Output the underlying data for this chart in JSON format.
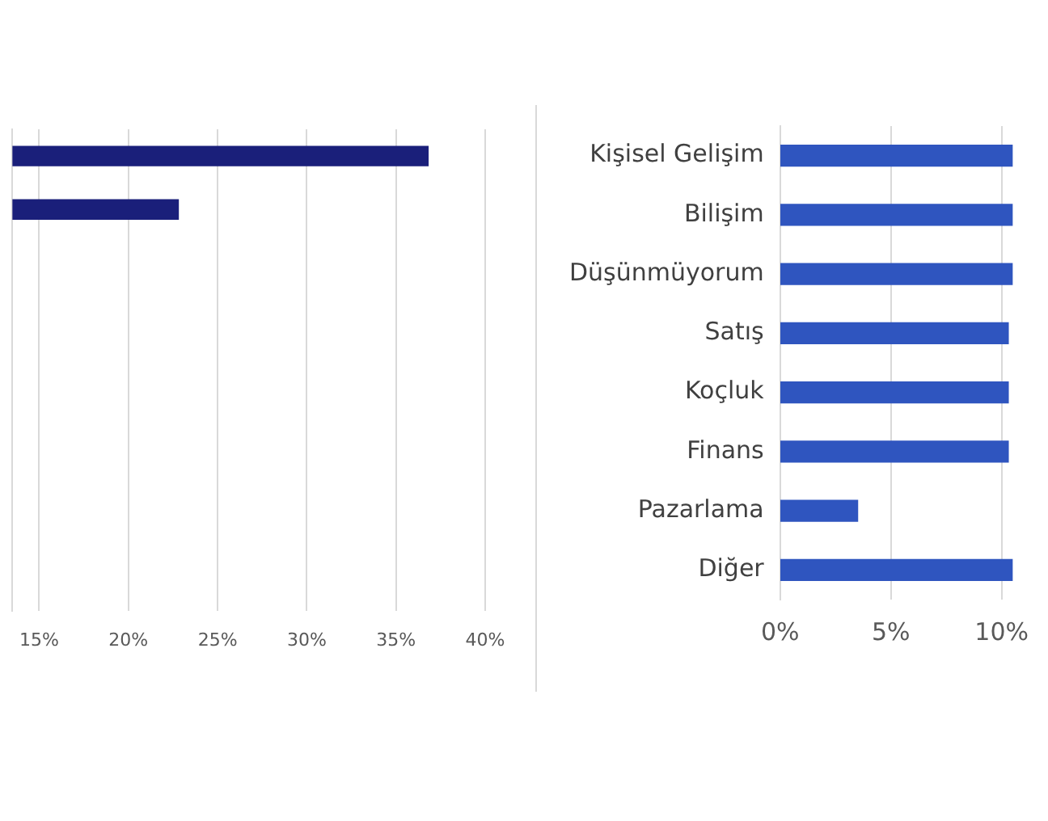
{
  "chart_data": [
    {
      "type": "bar",
      "orientation": "horizontal",
      "categories": [
        null,
        null,
        null,
        null,
        null,
        null,
        null,
        null,
        null
      ],
      "values": [
        36.8,
        22.8,
        null,
        null,
        null,
        null,
        null,
        null,
        null
      ],
      "color": "#1a1f7a",
      "xlim": [
        13.5,
        40
      ],
      "xticks": [
        {
          "value": 15,
          "label": "15%"
        },
        {
          "value": 20,
          "label": "20%"
        },
        {
          "value": 25,
          "label": "25%"
        },
        {
          "value": 30,
          "label": "30%"
        },
        {
          "value": 35,
          "label": "35%"
        },
        {
          "value": 40,
          "label": "40%"
        }
      ],
      "grid": "x"
    },
    {
      "type": "bar",
      "orientation": "horizontal",
      "categories": [
        "Kişisel Gelişim",
        "Bilişim",
        "Düşünmüyorum",
        "Satış",
        "Koçluk",
        "Finans",
        "Pazarlama",
        "Diğer"
      ],
      "values": [
        10.5,
        10.5,
        10.5,
        10.3,
        10.3,
        10.3,
        3.5,
        10.5
      ],
      "color": "#2f55bf",
      "xlim": [
        0,
        10.5
      ],
      "xticks": [
        {
          "value": 0,
          "label": "0%"
        },
        {
          "value": 5,
          "label": "5%"
        },
        {
          "value": 10,
          "label": "10%"
        }
      ],
      "grid": "x"
    }
  ]
}
